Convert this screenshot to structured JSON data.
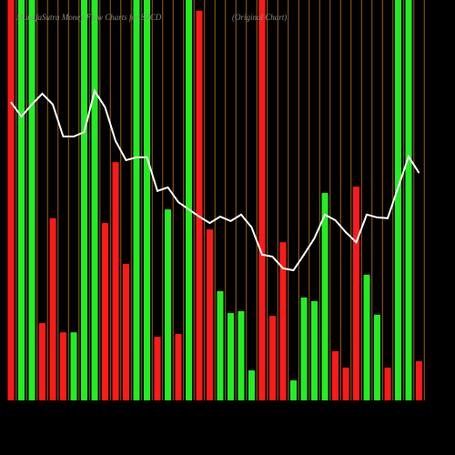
{
  "chart_data": {
    "type": "bar",
    "title": "MunafaSutra  Money Flow  Charts for SPCD",
    "subtitle": "(Original Chart)",
    "ylim": [
      0,
      100
    ],
    "series": [
      {
        "name": "Money Flow",
        "colors": [
          "#ff1a1a",
          "#22ee22",
          "#22ee22",
          "#ff1a1a",
          "#ff1a1a",
          "#ff1a1a",
          "#22ee22",
          "#22ee22",
          "#22ee22",
          "#ff1a1a",
          "#ff1a1a",
          "#ff1a1a",
          "#22ee22",
          "#22ee22",
          "#ff1a1a",
          "#22ee22",
          "#ff1a1a",
          "#22ee22",
          "#ff1a1a",
          "#ff1a1a",
          "#22ee22",
          "#22ee22",
          "#22ee22",
          "#22ee22",
          "#ff1a1a",
          "#ff1a1a",
          "#ff1a1a",
          "#22ee22",
          "#22ee22",
          "#22ee22",
          "#22ee22",
          "#ff1a1a",
          "#ff1a1a",
          "#ff1a1a",
          "#22ee22",
          "#22ee22",
          "#ff1a1a",
          "#22ee22",
          "#22ee22",
          "#ff1a1a"
        ],
        "values": [
          100,
          100,
          100,
          19.3,
          45.5,
          17,
          17,
          100,
          100,
          44.3,
          59.5,
          34.1,
          100,
          100,
          15.9,
          47.7,
          16.6,
          100,
          97.3,
          42.7,
          27.3,
          21.8,
          22.3,
          7.5,
          100,
          21.1,
          39.5,
          5,
          25.7,
          24.8,
          51.8,
          12.3,
          8.2,
          53.4,
          31.4,
          21.4,
          8.2,
          100,
          100,
          9.8
        ]
      },
      {
        "name": "Price",
        "color": "#ffffff",
        "line": true,
        "values": [
          74.5,
          70.9,
          73.9,
          76.6,
          73.9,
          65.9,
          65.9,
          67,
          77.3,
          73.2,
          64.8,
          60,
          60.7,
          60.7,
          52.3,
          53.2,
          49.5,
          47.7,
          45.9,
          44.3,
          45.9,
          44.8,
          46.4,
          43.2,
          36.4,
          35.9,
          33,
          32.5,
          36.4,
          40.5,
          46.4,
          45,
          42,
          39.5,
          46.4,
          45.7,
          45.5,
          53.2,
          60.9,
          56.8
        ]
      }
    ]
  }
}
